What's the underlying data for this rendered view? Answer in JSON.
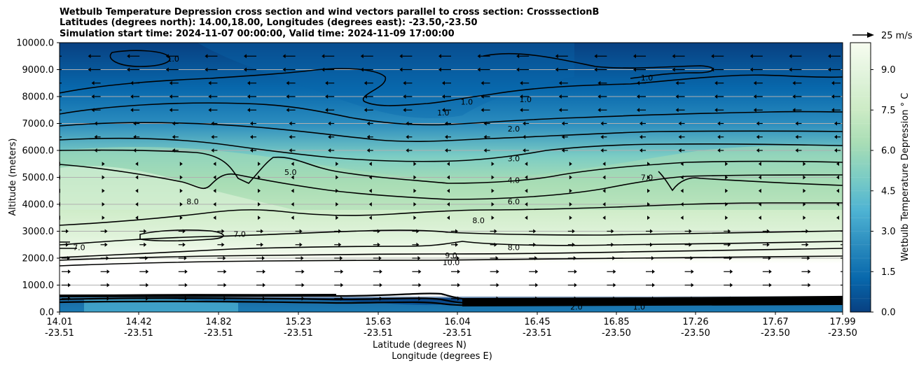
{
  "chart_data": {
    "type": "heatmap",
    "title_lines": [
      "Wetbulb Temperature Depression cross section and wind vectors parallel to cross section: CrosssectionB",
      "Latitudes (degrees north): 14.00,18.00, Longitudes (degrees east): -23.50,-23.50",
      "Simulation start time: 2024-11-07 00:00:00, Valid time: 2024-11-09 17:00:00"
    ],
    "ylabel": "Altitude (meters)",
    "xlabel": "Latitude (degrees N)",
    "xlabel2": "Longitude (degrees E)",
    "ylim": [
      0,
      10000
    ],
    "yticks": [
      "0.0",
      "1000.0",
      "2000.0",
      "3000.0",
      "4000.0",
      "5000.0",
      "6000.0",
      "7000.0",
      "8000.0",
      "9000.0",
      "10000.0"
    ],
    "xticks": [
      {
        "lat": "14.01",
        "lon": "-23.51"
      },
      {
        "lat": "14.42",
        "lon": "-23.51"
      },
      {
        "lat": "14.82",
        "lon": "-23.51"
      },
      {
        "lat": "15.23",
        "lon": "-23.51"
      },
      {
        "lat": "15.63",
        "lon": "-23.51"
      },
      {
        "lat": "16.04",
        "lon": "-23.51"
      },
      {
        "lat": "16.45",
        "lon": "-23.51"
      },
      {
        "lat": "16.85",
        "lon": "-23.50"
      },
      {
        "lat": "17.26",
        "lon": "-23.50"
      },
      {
        "lat": "17.67",
        "lon": "-23.50"
      },
      {
        "lat": "17.99",
        "lon": "-23.50"
      }
    ],
    "colorbar": {
      "label": "Wetbulb Temperature Depression ° C",
      "range": [
        0,
        10
      ],
      "ticks": [
        "0.0",
        "1.5",
        "3.0",
        "4.5",
        "6.0",
        "7.5",
        "9.0"
      ],
      "levels": 20,
      "colors": [
        "#084081",
        "#0868ac",
        "#2b8cbe",
        "#4eb3d3",
        "#7bccc4",
        "#a8ddb5",
        "#ccebc5",
        "#e0f3db",
        "#f7fcf0"
      ]
    },
    "quiver_key": "25 m/s",
    "contour_labels": [
      {
        "text": "1.0",
        "x": 0.145,
        "y": 9400
      },
      {
        "text": "1.0",
        "x": 0.49,
        "y": 7400
      },
      {
        "text": "1.0",
        "x": 0.52,
        "y": 7800
      },
      {
        "text": "1.0",
        "x": 0.595,
        "y": 7900
      },
      {
        "text": "1.0",
        "x": 0.75,
        "y": 8700
      },
      {
        "text": "2.0",
        "x": 0.58,
        "y": 6800
      },
      {
        "text": "3.0",
        "x": 0.58,
        "y": 5700
      },
      {
        "text": "4.0",
        "x": 0.58,
        "y": 4900
      },
      {
        "text": "5.0",
        "x": 0.295,
        "y": 5200
      },
      {
        "text": "6.0",
        "x": 0.58,
        "y": 4100
      },
      {
        "text": "7.0",
        "x": 0.75,
        "y": 5000
      },
      {
        "text": "7.0",
        "x": 0.23,
        "y": 2900
      },
      {
        "text": "7.0",
        "x": 0.025,
        "y": 2400
      },
      {
        "text": "8.0",
        "x": 0.17,
        "y": 4100
      },
      {
        "text": "8.0",
        "x": 0.535,
        "y": 3400
      },
      {
        "text": "8.0",
        "x": 0.58,
        "y": 2400
      },
      {
        "text": "9.0",
        "x": 0.5,
        "y": 2100
      },
      {
        "text": "10.0",
        "x": 0.5,
        "y": 1850
      },
      {
        "text": "2.0",
        "x": 0.66,
        "y": 200
      },
      {
        "text": "1.0",
        "x": 0.74,
        "y": 200
      }
    ]
  }
}
